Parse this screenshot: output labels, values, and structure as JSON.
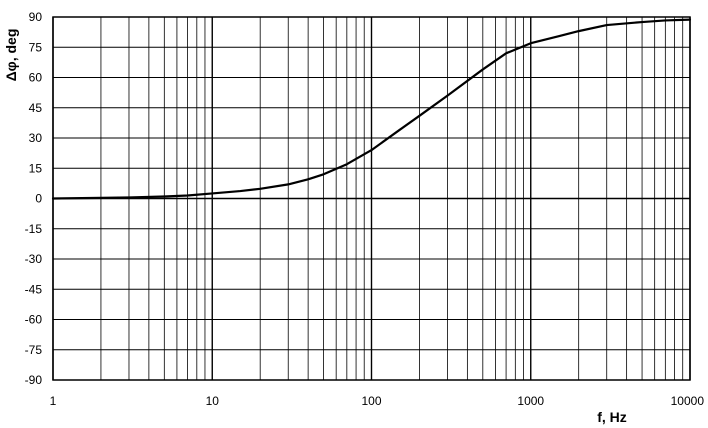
{
  "chart_data": {
    "type": "line",
    "xlabel": "f, Hz",
    "ylabel": "Δφ, deg",
    "x_scale": "log",
    "xlim": [
      1,
      10000
    ],
    "ylim": [
      -90,
      90
    ],
    "x_ticks": [
      "1",
      "10",
      "100",
      "1000",
      "10000"
    ],
    "y_ticks": [
      "90",
      "75",
      "60",
      "45",
      "30",
      "15",
      "0",
      "-15",
      "-30",
      "-45",
      "-60",
      "-75",
      "-90"
    ],
    "grid": true,
    "series": [
      {
        "x": [
          1,
          2,
          3,
          5,
          7,
          10,
          15,
          20,
          30,
          40,
          50,
          70,
          100,
          150,
          200,
          300,
          500,
          700,
          1000,
          1500,
          2000,
          3000,
          5000,
          7000,
          10000
        ],
        "values": [
          0,
          0.3,
          0.5,
          1,
          1.5,
          2.5,
          3.7,
          4.8,
          7,
          9.5,
          12,
          17,
          24,
          34,
          41,
          51,
          64,
          72,
          77,
          80.5,
          83,
          86,
          87.5,
          88.3,
          88.7
        ],
        "color": "#000000"
      }
    ]
  }
}
